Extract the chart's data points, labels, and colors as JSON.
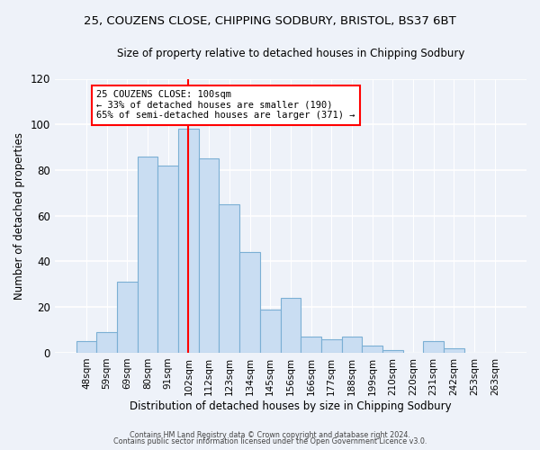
{
  "title": "25, COUZENS CLOSE, CHIPPING SODBURY, BRISTOL, BS37 6BT",
  "subtitle": "Size of property relative to detached houses in Chipping Sodbury",
  "xlabel": "Distribution of detached houses by size in Chipping Sodbury",
  "ylabel": "Number of detached properties",
  "bin_labels": [
    "48sqm",
    "59sqm",
    "69sqm",
    "80sqm",
    "91sqm",
    "102sqm",
    "112sqm",
    "123sqm",
    "134sqm",
    "145sqm",
    "156sqm",
    "166sqm",
    "177sqm",
    "188sqm",
    "199sqm",
    "210sqm",
    "220sqm",
    "231sqm",
    "242sqm",
    "253sqm",
    "263sqm"
  ],
  "bar_values": [
    5,
    9,
    31,
    86,
    82,
    98,
    85,
    65,
    44,
    19,
    24,
    7,
    6,
    7,
    3,
    1,
    0,
    5,
    2,
    0,
    0
  ],
  "bar_color": "#c9ddf2",
  "bar_edge_color": "#7bafd4",
  "vline_x_index": 5,
  "vline_color": "red",
  "annotation_text": "25 COUZENS CLOSE: 100sqm\n← 33% of detached houses are smaller (190)\n65% of semi-detached houses are larger (371) →",
  "annotation_box_color": "white",
  "annotation_box_edge_color": "red",
  "ylim": [
    0,
    120
  ],
  "yticks": [
    0,
    20,
    40,
    60,
    80,
    100,
    120
  ],
  "footnote1": "Contains HM Land Registry data © Crown copyright and database right 2024.",
  "footnote2": "Contains public sector information licensed under the Open Government Licence v3.0.",
  "bg_color": "#eef2f9",
  "grid_color": "white"
}
